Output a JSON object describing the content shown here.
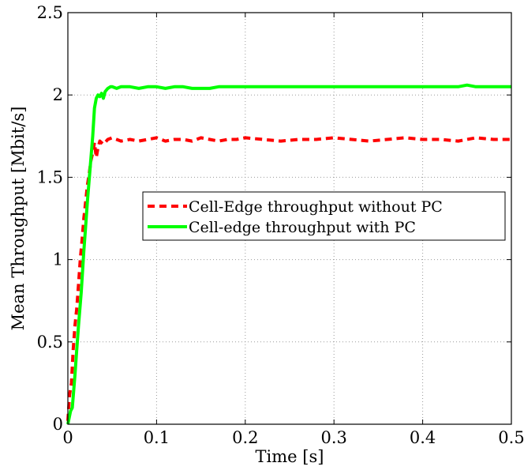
{
  "chart_data": {
    "type": "line",
    "title": "",
    "xlabel": "Time [s]",
    "ylabel": "Mean Throughput [Mbit/s]",
    "xlim": [
      0,
      0.5
    ],
    "ylim": [
      0,
      2.5
    ],
    "xticks": [
      0,
      0.1,
      0.2,
      0.3,
      0.4,
      0.5
    ],
    "xtick_labels": [
      "0",
      "0.1",
      "0.2",
      "0.3",
      "0.4",
      "0.5"
    ],
    "yticks": [
      0,
      0.5,
      1,
      1.5,
      2,
      2.5
    ],
    "ytick_labels": [
      "0",
      "0.5",
      "1",
      "1.5",
      "2",
      "2.5"
    ],
    "grid": true,
    "legend_position": "center-right",
    "series": [
      {
        "name": "Cell-Edge throughput without PC",
        "color": "#ff0000",
        "style": "dashed",
        "x": [
          0,
          0.002,
          0.004,
          0.006,
          0.008,
          0.01,
          0.012,
          0.014,
          0.016,
          0.018,
          0.02,
          0.022,
          0.024,
          0.026,
          0.028,
          0.03,
          0.032,
          0.034,
          0.036,
          0.038,
          0.04,
          0.045,
          0.05,
          0.06,
          0.07,
          0.08,
          0.09,
          0.1,
          0.11,
          0.12,
          0.13,
          0.14,
          0.15,
          0.16,
          0.17,
          0.18,
          0.19,
          0.2,
          0.22,
          0.24,
          0.26,
          0.28,
          0.3,
          0.32,
          0.34,
          0.36,
          0.38,
          0.4,
          0.42,
          0.44,
          0.46,
          0.48,
          0.5
        ],
        "y": [
          0.02,
          0.18,
          0.25,
          0.45,
          0.6,
          0.7,
          0.85,
          1.0,
          1.12,
          1.25,
          1.35,
          1.45,
          1.52,
          1.6,
          1.65,
          1.71,
          1.62,
          1.68,
          1.72,
          1.71,
          1.7,
          1.73,
          1.74,
          1.72,
          1.73,
          1.72,
          1.73,
          1.74,
          1.72,
          1.73,
          1.73,
          1.72,
          1.74,
          1.73,
          1.72,
          1.73,
          1.73,
          1.74,
          1.73,
          1.72,
          1.73,
          1.73,
          1.74,
          1.73,
          1.72,
          1.73,
          1.74,
          1.73,
          1.73,
          1.72,
          1.74,
          1.73,
          1.73
        ]
      },
      {
        "name": "Cell-edge throughput with PC",
        "color": "#00ff00",
        "style": "solid",
        "x": [
          0,
          0.003,
          0.005,
          0.008,
          0.01,
          0.012,
          0.015,
          0.018,
          0.02,
          0.022,
          0.025,
          0.028,
          0.03,
          0.032,
          0.034,
          0.036,
          0.038,
          0.04,
          0.042,
          0.045,
          0.048,
          0.05,
          0.055,
          0.06,
          0.07,
          0.08,
          0.09,
          0.1,
          0.11,
          0.12,
          0.13,
          0.14,
          0.15,
          0.16,
          0.17,
          0.18,
          0.19,
          0.2,
          0.22,
          0.24,
          0.26,
          0.28,
          0.3,
          0.32,
          0.34,
          0.36,
          0.38,
          0.4,
          0.42,
          0.44,
          0.45,
          0.46,
          0.48,
          0.5
        ],
        "y": [
          0.0,
          0.08,
          0.1,
          0.3,
          0.45,
          0.6,
          0.8,
          1.05,
          1.2,
          1.35,
          1.55,
          1.75,
          1.92,
          1.98,
          2.0,
          1.99,
          2.01,
          1.98,
          2.02,
          2.04,
          2.05,
          2.05,
          2.04,
          2.05,
          2.05,
          2.04,
          2.05,
          2.05,
          2.04,
          2.05,
          2.05,
          2.04,
          2.04,
          2.04,
          2.05,
          2.05,
          2.05,
          2.05,
          2.05,
          2.05,
          2.05,
          2.05,
          2.05,
          2.05,
          2.05,
          2.05,
          2.05,
          2.05,
          2.05,
          2.05,
          2.06,
          2.05,
          2.05,
          2.05
        ]
      }
    ]
  }
}
